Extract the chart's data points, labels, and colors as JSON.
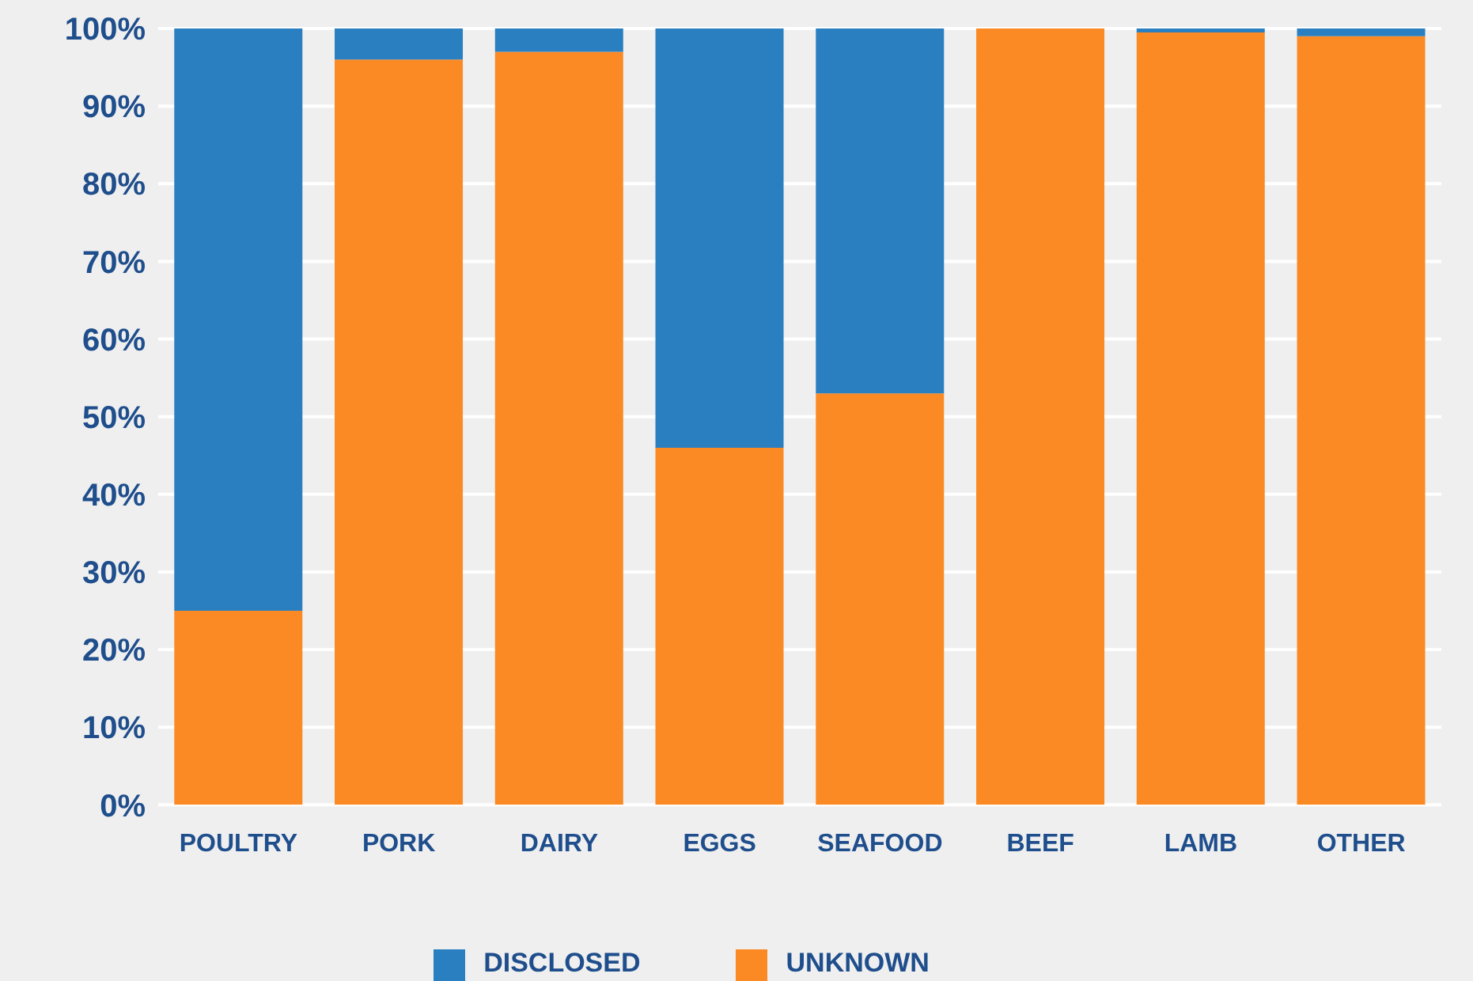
{
  "chart_data": {
    "type": "bar",
    "stacked": true,
    "categories": [
      "POULTRY",
      "PORK",
      "DAIRY",
      "EGGS",
      "SEAFOOD",
      "BEEF",
      "LAMB",
      "OTHER"
    ],
    "series": [
      {
        "name": "UNKNOWN",
        "color": "#fb8a24",
        "values": [
          25,
          96,
          97,
          46,
          53,
          100,
          99.5,
          99
        ]
      },
      {
        "name": "DISCLOSED",
        "color": "#2a7fc0",
        "values": [
          75,
          4,
          3,
          54,
          47,
          0,
          0.5,
          1
        ]
      }
    ],
    "ylim": [
      0,
      100
    ],
    "yticks": [
      {
        "value": 0,
        "label": "0%"
      },
      {
        "value": 10,
        "label": "10%"
      },
      {
        "value": 20,
        "label": "20%"
      },
      {
        "value": 30,
        "label": "30%"
      },
      {
        "value": 40,
        "label": "40%"
      },
      {
        "value": 50,
        "label": "50%"
      },
      {
        "value": 60,
        "label": "60%"
      },
      {
        "value": 70,
        "label": "70%"
      },
      {
        "value": 80,
        "label": "80%"
      },
      {
        "value": 90,
        "label": "90%"
      },
      {
        "value": 100,
        "label": "100%"
      }
    ],
    "grid": "y",
    "legend": "bottom"
  }
}
